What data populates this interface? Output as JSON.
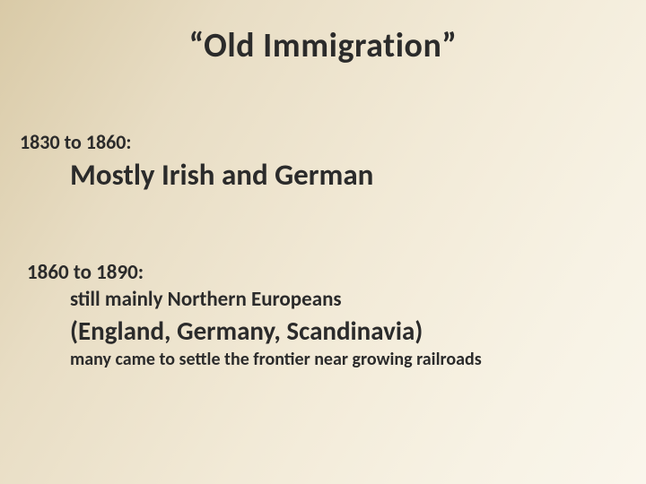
{
  "slide": {
    "title": "“Old Immigration”",
    "period1": {
      "date_range": "1830 to 1860:",
      "main": "Mostly Irish and German"
    },
    "period2": {
      "date_range": "1860 to 1890:",
      "sub": "still mainly Northern Europeans",
      "main": "(England, Germany, Scandinavia)",
      "note": "many came to settle the frontier near growing railroads"
    }
  },
  "style": {
    "bg_gradient_start": "#d9caa7",
    "bg_gradient_end": "#faf6ec",
    "text_color": "#2b2b2b",
    "title_fontsize": 38,
    "date_fontsize": 22,
    "main1_fontsize": 33,
    "main2_fontsize": 29,
    "sub_fontsize": 23,
    "note_fontsize": 20,
    "font_family": "Calibri"
  }
}
